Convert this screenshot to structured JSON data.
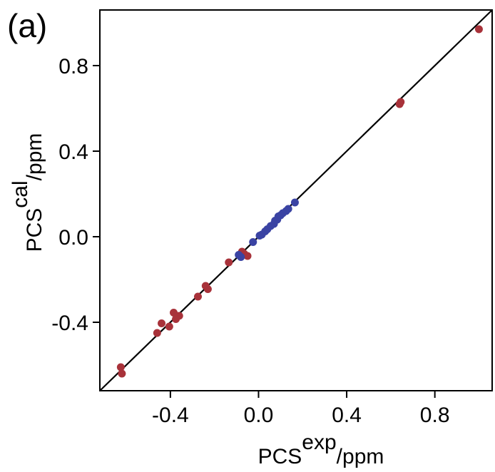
{
  "panel_label": "(a)",
  "chart_data": {
    "type": "scatter",
    "x_ticks": [
      -0.4,
      0.0,
      0.4,
      0.8
    ],
    "x_tick_labels": [
      "-0.4",
      "0.0",
      "0.4",
      "0.8"
    ],
    "y_ticks": [
      -0.4,
      0.0,
      0.4,
      0.8
    ],
    "y_tick_labels": [
      "-0.4",
      "0.0",
      "0.4",
      "0.8"
    ],
    "xlim": [
      -0.72,
      1.06
    ],
    "ylim": [
      -0.72,
      1.06
    ],
    "xlabel": {
      "main": "PCS",
      "sup": "exp",
      "sub": "/ppm"
    },
    "ylabel": {
      "main": "PCS",
      "sup": "cal",
      "sub": "/ppm"
    },
    "grid": false,
    "reference_line": {
      "from": [
        -0.72,
        -0.72
      ],
      "to": [
        1.06,
        1.06
      ],
      "color": "#000000"
    },
    "series": [
      {
        "color": "#a8323a",
        "points": [
          [
            1.0,
            0.97
          ],
          [
            0.64,
            0.62
          ],
          [
            0.645,
            0.63
          ],
          [
            -0.135,
            -0.12
          ],
          [
            -0.075,
            -0.07
          ],
          [
            -0.065,
            -0.08
          ],
          [
            -0.05,
            -0.09
          ],
          [
            -0.24,
            -0.23
          ],
          [
            -0.23,
            -0.245
          ],
          [
            -0.275,
            -0.28
          ],
          [
            -0.385,
            -0.355
          ],
          [
            -0.36,
            -0.37
          ],
          [
            -0.375,
            -0.385
          ],
          [
            -0.44,
            -0.405
          ],
          [
            -0.405,
            -0.42
          ],
          [
            -0.46,
            -0.45
          ],
          [
            -0.625,
            -0.61
          ],
          [
            -0.62,
            -0.64
          ]
        ]
      },
      {
        "color": "#3a43a3",
        "points": [
          [
            0.165,
            0.16
          ],
          [
            0.135,
            0.13
          ],
          [
            0.125,
            0.12
          ],
          [
            0.11,
            0.11
          ],
          [
            0.1,
            0.1
          ],
          [
            0.09,
            0.095
          ],
          [
            0.085,
            0.08
          ],
          [
            0.075,
            0.075
          ],
          [
            0.07,
            0.06
          ],
          [
            0.055,
            0.05
          ],
          [
            0.04,
            0.035
          ],
          [
            0.03,
            0.025
          ],
          [
            0.015,
            0.01
          ],
          [
            0.005,
            0.005
          ],
          [
            -0.025,
            -0.025
          ],
          [
            -0.09,
            -0.085
          ],
          [
            -0.08,
            -0.095
          ]
        ]
      }
    ]
  }
}
